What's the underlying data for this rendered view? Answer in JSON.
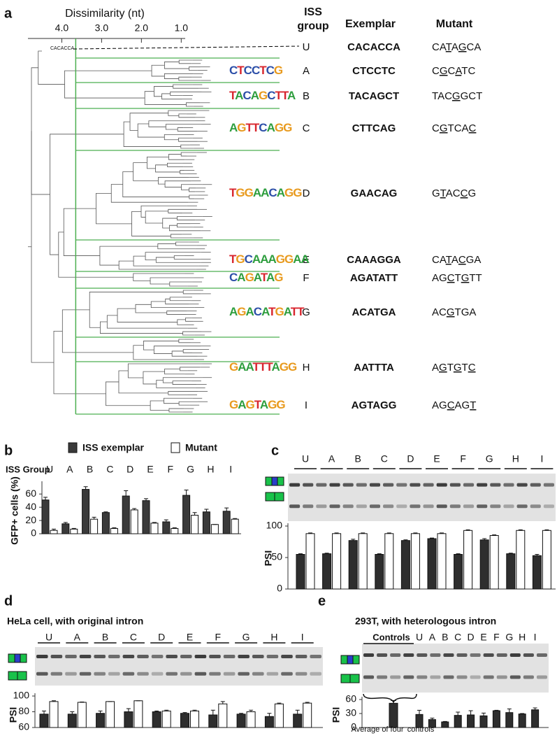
{
  "panel_a": {
    "label": "a",
    "axis_title": "Dissimilarity (nt)",
    "xlim": [
      4.85,
      0.9
    ],
    "xticks": [
      {
        "value": 4,
        "label": "4.0"
      },
      {
        "value": 3,
        "label": "3.0"
      },
      {
        "value": 2,
        "label": "2.0"
      },
      {
        "value": 1,
        "label": "1.0"
      }
    ],
    "cutoff": 3.65,
    "headers": {
      "group": [
        "ISS",
        "group"
      ],
      "exemplar": "Exemplar",
      "mutant": "Mutant"
    },
    "groups": [
      {
        "name": "U",
        "exemplar": "CACACCA",
        "mutant": "CATAGCA",
        "underline": [
          2,
          4
        ]
      },
      {
        "name": "A",
        "exemplar": "CTCCTC",
        "mutant": "CGCATC",
        "underline": [
          1,
          3
        ],
        "logo": "CTCCTCG"
      },
      {
        "name": "B",
        "exemplar": "TACAGCT",
        "mutant": "TACGGCT",
        "underline": [
          3
        ],
        "logo": "TACAGCTTA"
      },
      {
        "name": "C",
        "exemplar": "CTTCAG",
        "mutant": "CGTCAC",
        "underline": [
          1,
          5
        ],
        "logo": "AGTTCAGG"
      },
      {
        "name": "D",
        "exemplar": "GAACAG",
        "mutant": "GTACCG",
        "underline": [
          1,
          4
        ],
        "logo": "TGGAACAGG"
      },
      {
        "name": "E",
        "exemplar": "CAAAGGA",
        "mutant": "CATACGA",
        "underline": [
          2,
          4
        ],
        "logo": "TGCAAAGGAA"
      },
      {
        "name": "F",
        "exemplar": "AGATATT",
        "mutant": "AGCTGTT",
        "underline": [
          2,
          4
        ],
        "logo": "CAGATAG"
      },
      {
        "name": "G",
        "exemplar": "ACATGA",
        "mutant": "ACGTGA",
        "underline": [
          2
        ],
        "logo": "AGACATGATT"
      },
      {
        "name": "H",
        "exemplar": "AATTTA",
        "mutant": "AGTGTC",
        "underline": [
          1,
          3,
          5
        ],
        "logo": "GAATTTAGG"
      },
      {
        "name": "I",
        "exemplar": "AGTAGG",
        "mutant": "AGCAGT",
        "underline": [
          2,
          5
        ],
        "logo": "GAGTAGG"
      }
    ]
  },
  "chart_data": [
    {
      "type": "bar",
      "label": "b",
      "category_title": "ISS Group",
      "ylabel": "GFP+ cells (%)",
      "legend": "top",
      "categories": [
        "U",
        "A",
        "B",
        "C",
        "D",
        "E",
        "F",
        "G",
        "H",
        "I"
      ],
      "series": [
        {
          "name": "ISS exemplar",
          "color": "#3a3a3a",
          "values": [
            51,
            15,
            67,
            32,
            57,
            50,
            18,
            58,
            33,
            34
          ],
          "errors": [
            4,
            2,
            4,
            1,
            8,
            3,
            3,
            8,
            4,
            5
          ]
        },
        {
          "name": "Mutant",
          "color": "#ffffff",
          "values": [
            5,
            7,
            22,
            8,
            36,
            16,
            8,
            28,
            14,
            22
          ],
          "errors": [
            2,
            1,
            3,
            1,
            2,
            1,
            1,
            4,
            0,
            1
          ]
        }
      ],
      "ylim": [
        0,
        75
      ],
      "yticks": [
        0,
        20,
        40,
        60
      ]
    },
    {
      "type": "bar",
      "label": "c",
      "ylabel": "PSI",
      "categories": [
        "U",
        "A",
        "B",
        "C",
        "D",
        "E",
        "F",
        "G",
        "H",
        "I"
      ],
      "series": [
        {
          "color": "#2e2e2e",
          "values": [
            55,
            56,
            77,
            55,
            77,
            80,
            55,
            78,
            56,
            53
          ],
          "errors": [
            1,
            1,
            2,
            1,
            1,
            1,
            1,
            2,
            1,
            2
          ]
        },
        {
          "color": "#ffffff",
          "values": [
            88,
            88,
            88,
            88,
            88,
            88,
            93,
            85,
            93,
            93
          ],
          "errors": [
            1,
            1,
            1,
            1,
            1,
            1,
            1,
            1,
            1,
            1
          ]
        }
      ],
      "ylim": [
        0,
        100
      ],
      "yticks": [
        0,
        50,
        100
      ]
    },
    {
      "type": "bar",
      "label": "d",
      "title": "HeLa cell, with original intron",
      "ylabel": "PSI",
      "categories": [
        "U",
        "A",
        "B",
        "C",
        "D",
        "E",
        "F",
        "G",
        "H",
        "I"
      ],
      "series": [
        {
          "color": "#2e2e2e",
          "values": [
            77,
            77,
            78,
            80,
            80,
            78,
            76,
            77,
            74,
            77
          ],
          "errors": [
            4,
            3,
            3,
            4,
            1,
            1,
            6,
            1,
            4,
            5
          ]
        },
        {
          "color": "#ffffff",
          "values": [
            93,
            92,
            93,
            94,
            81,
            81,
            90,
            80,
            90,
            91
          ],
          "errors": [
            1,
            0.5,
            0,
            0,
            1,
            1,
            3,
            2,
            1,
            1
          ]
        }
      ],
      "ylim": [
        60,
        100
      ],
      "yticks": [
        60,
        80,
        100
      ]
    },
    {
      "type": "bar",
      "label": "e",
      "title": "293T, with heterologous intron",
      "ylabel": "PSI",
      "group_label": "Controls",
      "control": {
        "label": [
          "Average of four",
          "controls"
        ],
        "value": 52,
        "error": 6
      },
      "categories": [
        "U",
        "A",
        "B",
        "C",
        "D",
        "E",
        "F",
        "G",
        "H",
        "I"
      ],
      "series": [
        {
          "color": "#2e2e2e",
          "values": [
            28,
            17,
            12,
            26,
            27,
            25,
            36,
            32,
            29,
            38
          ],
          "errors": [
            9,
            3,
            1,
            7,
            9,
            6,
            1,
            8,
            1,
            4
          ]
        }
      ],
      "ylim": [
        0,
        60
      ],
      "yticks": [
        0,
        30,
        60
      ]
    }
  ]
}
